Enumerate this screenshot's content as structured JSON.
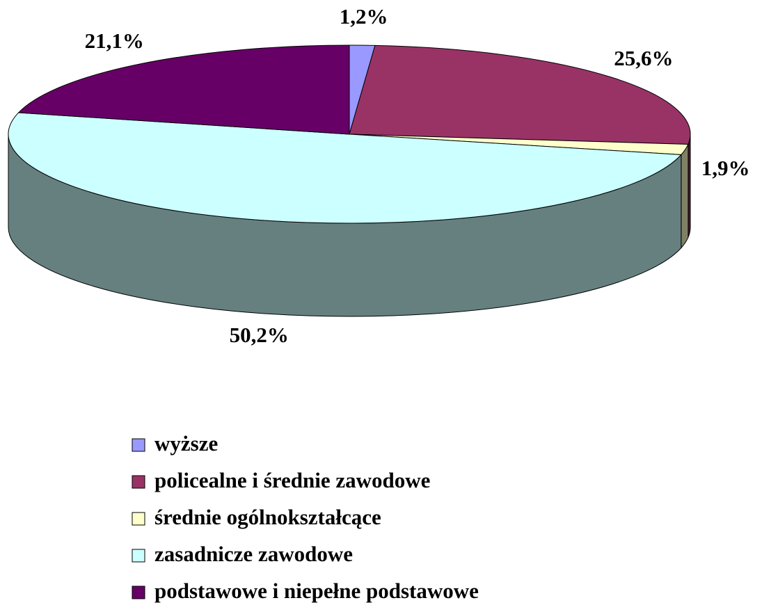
{
  "chart_data": {
    "type": "pie3d",
    "categories": [
      "wyższe",
      "policealne i średnie zawodowe",
      "średnie ogólnokształcące",
      "zasadnicze zawodowe",
      "podstawowe i niepełne podstawowe"
    ],
    "values": [
      1.2,
      25.6,
      1.9,
      50.2,
      21.1
    ],
    "value_labels": [
      "1,2%",
      "25,6%",
      "1,9%",
      "50,2%",
      "21,1%"
    ],
    "colors": [
      "#9999ff",
      "#993366",
      "#ffffcc",
      "#ccffff",
      "#660066"
    ],
    "legend": "bottom"
  }
}
